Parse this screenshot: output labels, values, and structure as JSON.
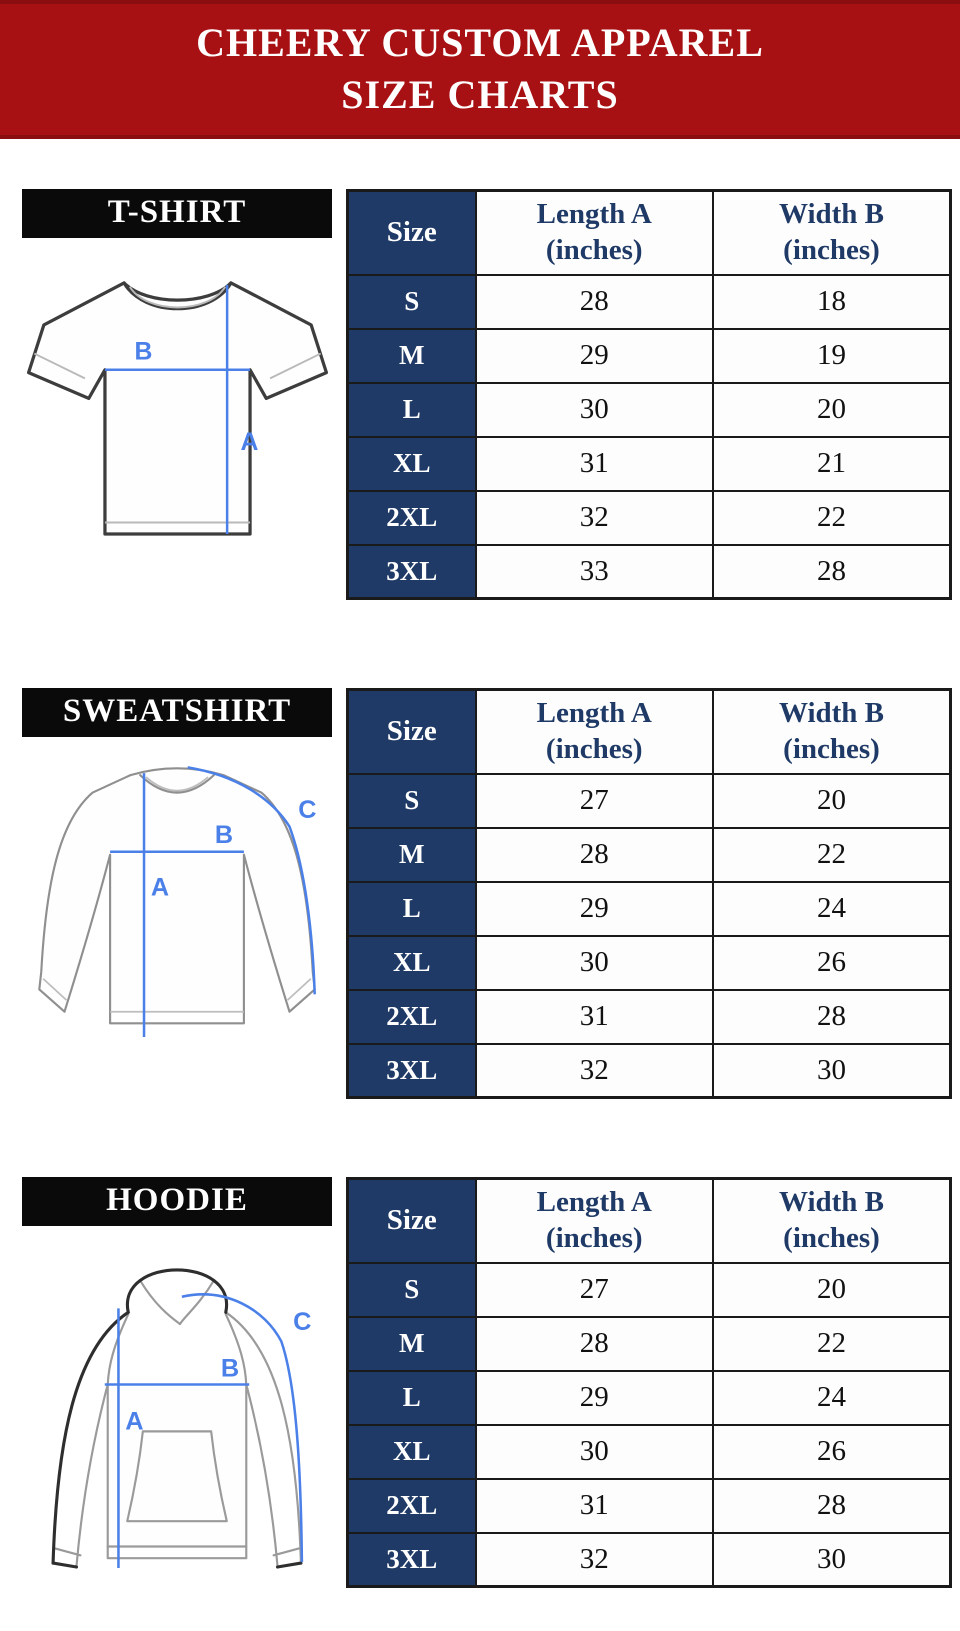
{
  "banner": {
    "title_line1": "CHEERY CUSTOM APPAREL",
    "title_line2": "SIZE CHARTS"
  },
  "colors": {
    "banner_red": "#A81114",
    "navy": "#1F3A66",
    "label_black": "#0A0A0A",
    "measure_blue": "#4A80E8",
    "border_dark": "#1A1A1A"
  },
  "table_headers": {
    "size": "Size",
    "length_line1": "Length A",
    "length_line2": "(inches)",
    "width_line1": "Width B",
    "width_line2": "(inches)"
  },
  "sections": [
    {
      "label": "T-SHIRT",
      "measure_labels": {
        "a": "A",
        "b": "B"
      },
      "rows": [
        [
          "S",
          "28",
          "18"
        ],
        [
          "M",
          "29",
          "19"
        ],
        [
          "L",
          "30",
          "20"
        ],
        [
          "XL",
          "31",
          "21"
        ],
        [
          "2XL",
          "32",
          "22"
        ],
        [
          "3XL",
          "33",
          "28"
        ]
      ]
    },
    {
      "label": "SWEATSHIRT",
      "measure_labels": {
        "a": "A",
        "b": "B",
        "c": "C"
      },
      "rows": [
        [
          "S",
          "27",
          "20"
        ],
        [
          "M",
          "28",
          "22"
        ],
        [
          "L",
          "29",
          "24"
        ],
        [
          "XL",
          "30",
          "26"
        ],
        [
          "2XL",
          "31",
          "28"
        ],
        [
          "3XL",
          "32",
          "30"
        ]
      ]
    },
    {
      "label": "HOODIE",
      "measure_labels": {
        "a": "A",
        "b": "B",
        "c": "C"
      },
      "rows": [
        [
          "S",
          "27",
          "20"
        ],
        [
          "M",
          "28",
          "22"
        ],
        [
          "L",
          "29",
          "24"
        ],
        [
          "XL",
          "30",
          "26"
        ],
        [
          "2XL",
          "31",
          "28"
        ],
        [
          "3XL",
          "32",
          "30"
        ]
      ]
    }
  ]
}
